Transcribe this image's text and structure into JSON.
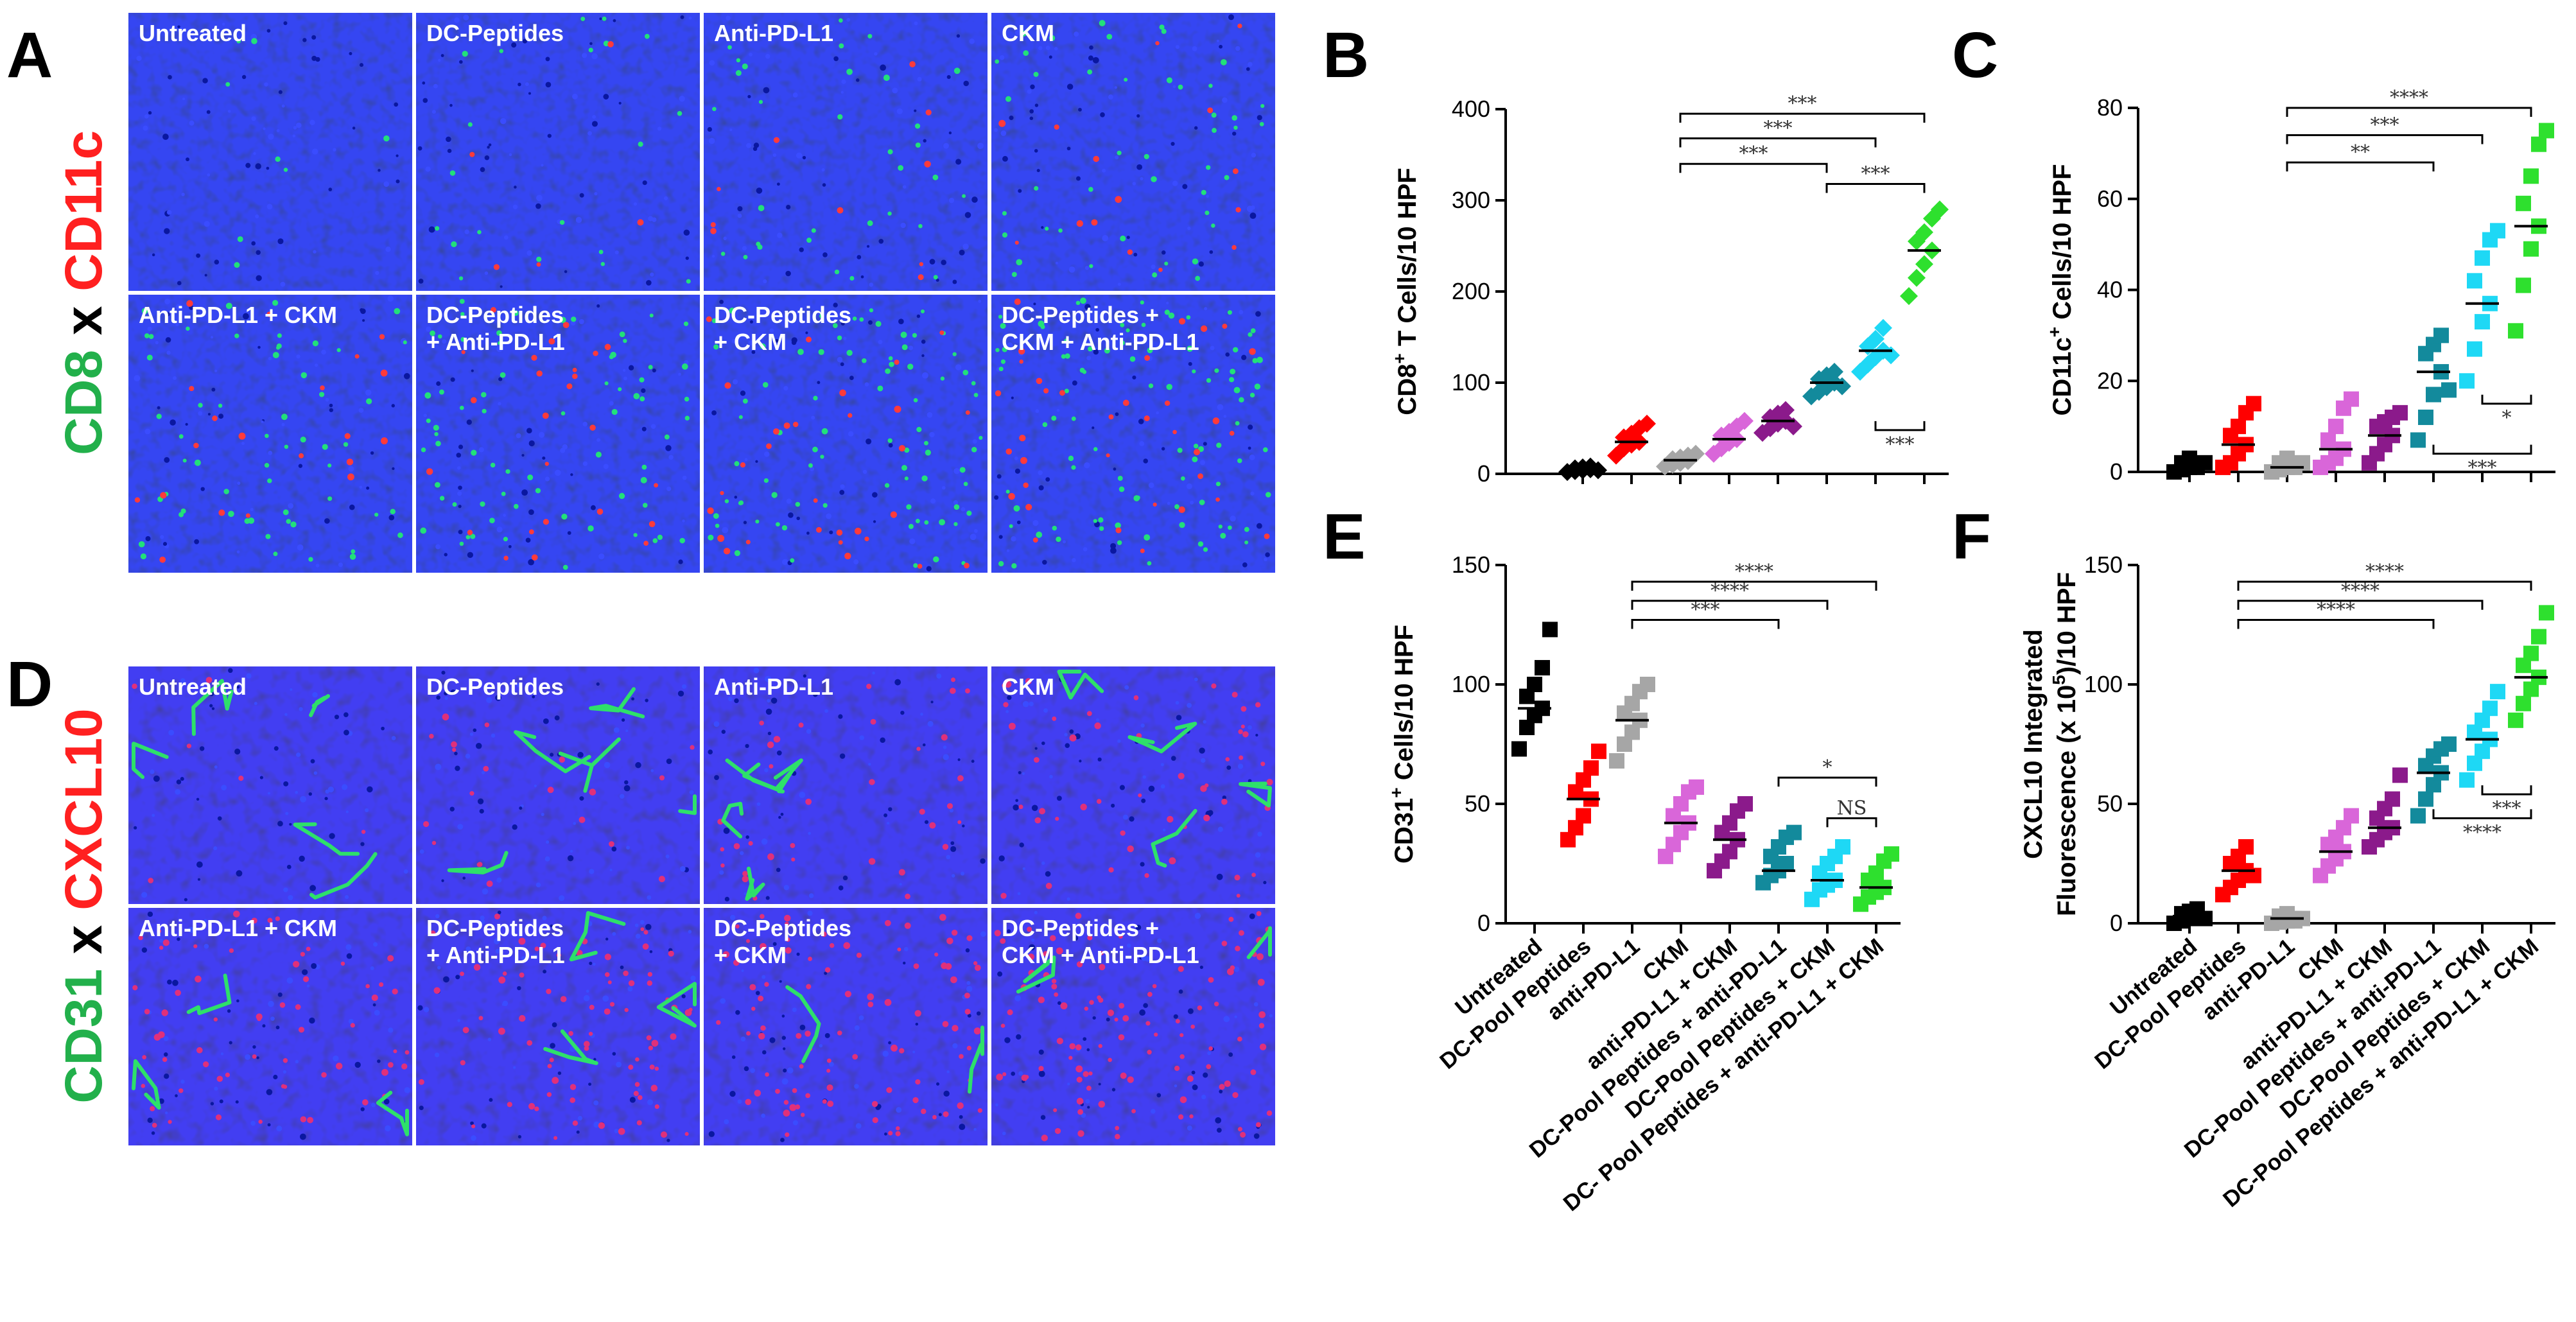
{
  "micrographs": [
    {
      "letter": "A",
      "marker_green": "CD8",
      "marker_x": "x",
      "marker_red": "CD11c",
      "tiles": [
        [
          "Untreated"
        ],
        [
          "DC-Peptides"
        ],
        [
          "Anti-PD-L1"
        ],
        [
          "CKM"
        ],
        [
          "Anti-PD-L1 + CKM"
        ],
        [
          "DC-Peptides",
          "+ Anti-PD-L1"
        ],
        [
          "DC-Peptides",
          "+ CKM"
        ],
        [
          "DC-Peptides +",
          "CKM + Anti-PD-L1"
        ]
      ],
      "style": "cd8"
    },
    {
      "letter": "D",
      "marker_green": "CD31",
      "marker_x": "x",
      "marker_red": "CXCL10",
      "tiles": [
        [
          "Untreated"
        ],
        [
          "DC-Peptides"
        ],
        [
          "Anti-PD-L1"
        ],
        [
          "CKM"
        ],
        [
          "Anti-PD-L1 + CKM"
        ],
        [
          "DC-Peptides",
          "+ Anti-PD-L1"
        ],
        [
          "DC-Peptides",
          "+ CKM"
        ],
        [
          "DC-Peptides +",
          "CKM + Anti-PD-L1"
        ]
      ],
      "style": "cd31"
    }
  ],
  "colors": [
    "#000000",
    "#ff0000",
    "#a6a6a6",
    "#d966d9",
    "#8b1a8b",
    "#138a9c",
    "#1ed8f5",
    "#2ee02e"
  ],
  "chart_data": [
    {
      "type": "scatter",
      "letter": "B",
      "ylabel_lines": [
        "CD8",
        "+",
        " T Cells/10 HPF"
      ],
      "ylim": [
        0,
        400
      ],
      "yticks": [
        0,
        100,
        200,
        300,
        400
      ],
      "tick_labels": [
        "0",
        "100",
        "200",
        "300",
        "400"
      ],
      "categories": [],
      "marker": "diamond",
      "groups": [
        {
          "mean": 5,
          "values": [
            2,
            3,
            4,
            5,
            6,
            7,
            8,
            4
          ]
        },
        {
          "mean": 35,
          "values": [
            20,
            28,
            32,
            35,
            40,
            44,
            50,
            55
          ]
        },
        {
          "mean": 15,
          "values": [
            8,
            10,
            12,
            14,
            16,
            18,
            20,
            22
          ]
        },
        {
          "mean": 38,
          "values": [
            22,
            28,
            34,
            38,
            42,
            46,
            52,
            58
          ]
        },
        {
          "mean": 58,
          "values": [
            45,
            50,
            55,
            58,
            62,
            66,
            70,
            52
          ]
        },
        {
          "mean": 100,
          "values": [
            85,
            90,
            95,
            100,
            104,
            108,
            112,
            96
          ]
        },
        {
          "mean": 135,
          "values": [
            112,
            120,
            128,
            135,
            140,
            148,
            160,
            130
          ]
        },
        {
          "mean": 245,
          "values": [
            195,
            215,
            230,
            245,
            255,
            265,
            280,
            290
          ]
        }
      ],
      "comparisons": [
        {
          "from": 2,
          "to": 7,
          "label": "***",
          "y": 395,
          "side": "above"
        },
        {
          "from": 2,
          "to": 6,
          "label": "***",
          "y": 368,
          "side": "above"
        },
        {
          "from": 2,
          "to": 5,
          "label": "***",
          "y": 340,
          "side": "above"
        },
        {
          "from": 5,
          "to": 7,
          "label": "***",
          "y": 318,
          "side": "above"
        },
        {
          "from": 6,
          "to": 7,
          "label": "***",
          "y": 48,
          "side": "below"
        }
      ]
    },
    {
      "type": "scatter",
      "letter": "C",
      "ylabel_lines": [
        "CD11c",
        "+",
        " Cells/10 HPF"
      ],
      "ylim": [
        0,
        80
      ],
      "yticks": [
        0,
        20,
        40,
        60,
        80
      ],
      "tick_labels": [
        "0",
        "20",
        "40",
        "60",
        "80"
      ],
      "categories": [],
      "marker": "square",
      "groups": [
        {
          "mean": 1,
          "values": [
            0,
            0.5,
            1,
            1.5,
            2,
            3,
            1,
            2
          ]
        },
        {
          "mean": 6,
          "values": [
            1,
            2,
            4,
            6,
            8,
            10,
            13,
            15
          ]
        },
        {
          "mean": 1,
          "values": [
            0,
            0.5,
            1,
            1.5,
            2,
            3,
            1,
            2
          ]
        },
        {
          "mean": 5,
          "values": [
            1,
            2,
            3,
            5,
            7,
            10,
            14,
            16
          ]
        },
        {
          "mean": 8,
          "values": [
            2,
            4,
            6,
            8,
            10,
            11,
            12,
            13
          ]
        },
        {
          "mean": 22,
          "values": [
            7,
            12,
            17,
            22,
            26,
            28,
            30,
            18
          ]
        },
        {
          "mean": 37,
          "values": [
            20,
            27,
            33,
            37,
            42,
            47,
            51,
            53
          ]
        },
        {
          "mean": 54,
          "values": [
            31,
            41,
            49,
            54,
            59,
            65,
            72,
            75
          ]
        }
      ],
      "comparisons": [
        {
          "from": 2,
          "to": 7,
          "label": "****",
          "y": 80,
          "side": "above"
        },
        {
          "from": 2,
          "to": 6,
          "label": "***",
          "y": 74,
          "side": "above"
        },
        {
          "from": 2,
          "to": 5,
          "label": "**",
          "y": 68,
          "side": "above"
        },
        {
          "from": 6,
          "to": 7,
          "label": "*",
          "y": 15,
          "side": "below"
        },
        {
          "from": 5,
          "to": 7,
          "label": "***",
          "y": 4,
          "side": "below"
        }
      ]
    },
    {
      "type": "scatter",
      "letter": "E",
      "ylabel_lines": [
        "CD31",
        "+",
        " Cells/10 HPF"
      ],
      "ylim": [
        0,
        150
      ],
      "yticks": [
        0,
        50,
        100,
        150
      ],
      "tick_labels": [
        "0",
        "50",
        "100",
        "150"
      ],
      "categories": [
        "Untreated",
        "DC-Pool Peptides",
        "anti-PD-L1",
        "CKM",
        "anti-PD-L1 + CKM",
        "DC-Pool Peptides + anti-PD-L1",
        "DC-Pool Peptides + CKM",
        "DC- Pool Peptides + anti-PD-L1 + CKM"
      ],
      "marker": "square",
      "groups": [
        {
          "mean": 90,
          "values": [
            73,
            82,
            87,
            90,
            95,
            100,
            107,
            123
          ]
        },
        {
          "mean": 52,
          "values": [
            35,
            40,
            45,
            52,
            55,
            60,
            65,
            72
          ]
        },
        {
          "mean": 85,
          "values": [
            68,
            75,
            80,
            85,
            88,
            92,
            97,
            100
          ]
        },
        {
          "mean": 42,
          "values": [
            28,
            33,
            38,
            42,
            45,
            50,
            55,
            57
          ]
        },
        {
          "mean": 35,
          "values": [
            22,
            26,
            30,
            35,
            38,
            42,
            47,
            50
          ]
        },
        {
          "mean": 22,
          "values": [
            17,
            20,
            22,
            25,
            28,
            32,
            36,
            38
          ]
        },
        {
          "mean": 18,
          "values": [
            10,
            14,
            16,
            18,
            21,
            25,
            28,
            32
          ]
        },
        {
          "mean": 15,
          "values": [
            8,
            11,
            13,
            15,
            18,
            21,
            26,
            29
          ]
        }
      ],
      "comparisons": [
        {
          "from": 2,
          "to": 7,
          "label": "****",
          "y": 143,
          "side": "above"
        },
        {
          "from": 2,
          "to": 6,
          "label": "****",
          "y": 135,
          "side": "above"
        },
        {
          "from": 2,
          "to": 5,
          "label": "***",
          "y": 127,
          "side": "above"
        },
        {
          "from": 5,
          "to": 7,
          "label": "*",
          "y": 61,
          "side": "above"
        },
        {
          "from": 6,
          "to": 7,
          "label": "NS",
          "y": 44,
          "side": "above"
        }
      ]
    },
    {
      "type": "scatter",
      "letter": "F",
      "ylabel_lines": [
        "CXCL10 Integrated",
        "Fluorescence (x 10",
        "5",
        ")/10 HPF"
      ],
      "ylim": [
        0,
        150
      ],
      "yticks": [
        0,
        50,
        100,
        150
      ],
      "tick_labels": [
        "0",
        "50",
        "100",
        "150"
      ],
      "categories": [
        "Untreated",
        "DC-Pool Peptides",
        "anti-PD-L1",
        "CKM",
        "anti-PD-L1 + CKM",
        "DC-Pool Peptides + anti-PD-L1",
        "DC-Pool Peptides + CKM",
        "DC-Pool Peptides + anti-PD-L1 + CKM"
      ],
      "marker": "square",
      "groups": [
        {
          "mean": 3,
          "values": [
            0,
            1,
            2,
            3,
            4,
            5,
            6,
            2
          ]
        },
        {
          "mean": 22,
          "values": [
            12,
            15,
            18,
            22,
            25,
            28,
            32,
            20
          ]
        },
        {
          "mean": 2,
          "values": [
            0,
            0.5,
            1,
            2,
            3,
            4,
            1,
            2
          ]
        },
        {
          "mean": 30,
          "values": [
            20,
            24,
            27,
            30,
            33,
            36,
            40,
            45
          ]
        },
        {
          "mean": 40,
          "values": [
            32,
            35,
            38,
            40,
            44,
            48,
            52,
            62
          ]
        },
        {
          "mean": 63,
          "values": [
            45,
            52,
            58,
            63,
            66,
            70,
            73,
            75
          ]
        },
        {
          "mean": 77,
          "values": [
            60,
            67,
            72,
            77,
            80,
            85,
            90,
            97
          ]
        },
        {
          "mean": 103,
          "values": [
            85,
            92,
            98,
            103,
            108,
            113,
            120,
            130
          ]
        }
      ],
      "comparisons": [
        {
          "from": 1,
          "to": 7,
          "label": "****",
          "y": 143,
          "side": "above"
        },
        {
          "from": 1,
          "to": 6,
          "label": "****",
          "y": 135,
          "side": "above"
        },
        {
          "from": 1,
          "to": 5,
          "label": "****",
          "y": 127,
          "side": "above"
        },
        {
          "from": 6,
          "to": 7,
          "label": "***",
          "y": 54,
          "side": "below"
        },
        {
          "from": 5,
          "to": 7,
          "label": "****",
          "y": 44,
          "side": "below"
        }
      ]
    }
  ]
}
